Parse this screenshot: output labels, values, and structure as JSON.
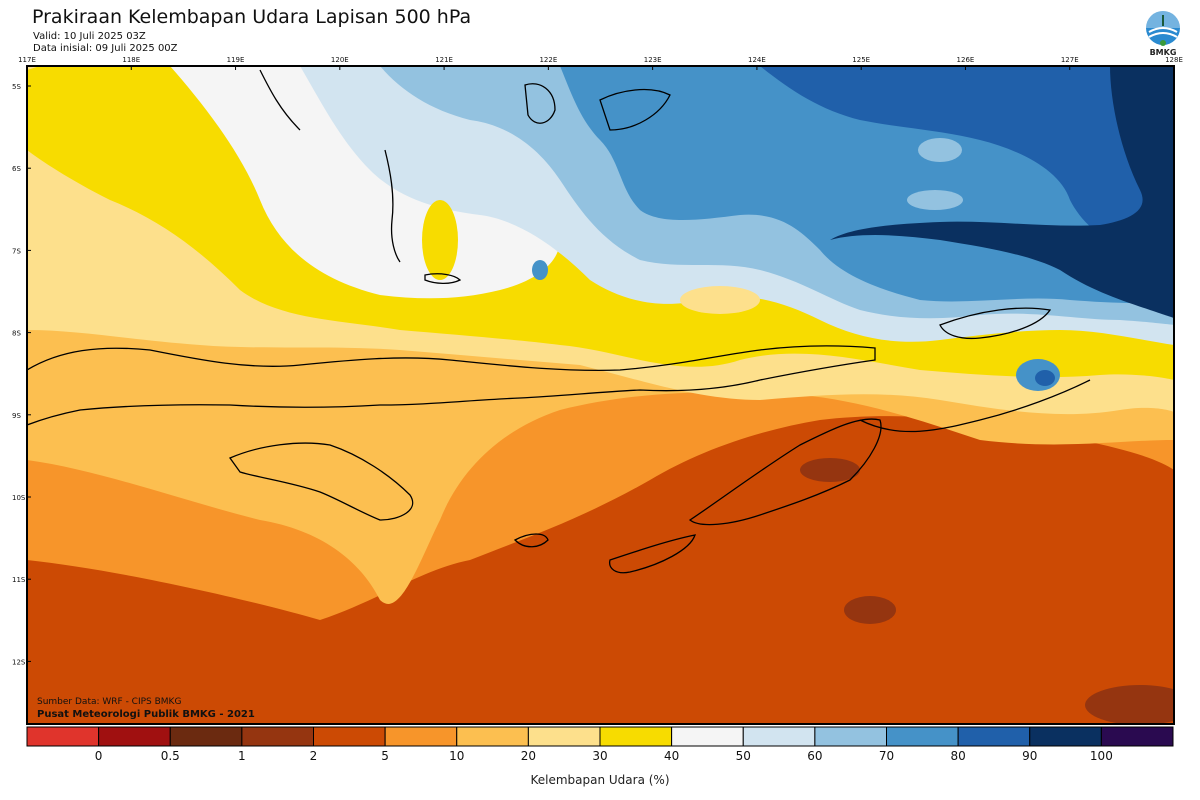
{
  "header": {
    "title": "Prakiraan Kelembapan Udara Lapisan 500 hPa",
    "valid": "Valid: 10 Juli 2025 03Z",
    "init": "Data inisial: 09 Juli 2025 00Z"
  },
  "logo": {
    "text": "BMKG",
    "icon": "bmkg-logo-icon"
  },
  "axes": {
    "lon_labels": [
      "117E",
      "118E",
      "119E",
      "120E",
      "121E",
      "122E",
      "123E",
      "124E",
      "125E",
      "126E",
      "127E",
      "128E"
    ],
    "lat_labels": [
      "5S",
      "6S",
      "7S",
      "8S",
      "9S",
      "10S",
      "11S",
      "12S"
    ]
  },
  "footer": {
    "source": "Sumber Data: WRF - CIPS BMKG",
    "publisher": "Pusat Meteorologi Publik BMKG - 2021"
  },
  "colorbar": {
    "title": "Kelembapan Udara (%)",
    "labels": [
      "0",
      "0.5",
      "1",
      "2",
      "5",
      "10",
      "20",
      "30",
      "40",
      "50",
      "60",
      "70",
      "80",
      "90",
      "100"
    ],
    "colors": [
      "#e0342c",
      "#a01010",
      "#6b2a10",
      "#953510",
      "#cc4a04",
      "#f7952a",
      "#fcbf50",
      "#fde08c",
      "#f7dc00",
      "#f5f5f5",
      "#d2e4f0",
      "#93c2e0",
      "#4592c8",
      "#2060aa",
      "#0a3060",
      "#2a0a50"
    ]
  },
  "map_colors": {
    "rh_5_10": "#cc4a04",
    "rh_10_20": "#f7952a",
    "rh_20_30": "#fcbf50",
    "rh_30_40": "#fde08c",
    "rh_40_50": "#f7dc00",
    "rh_50_60": "#f5f5f5",
    "rh_60_70": "#d2e4f0",
    "rh_70_80": "#93c2e0",
    "rh_80_90": "#4592c8",
    "rh_90_100": "#2060aa",
    "rh_100": "#0a3060"
  }
}
